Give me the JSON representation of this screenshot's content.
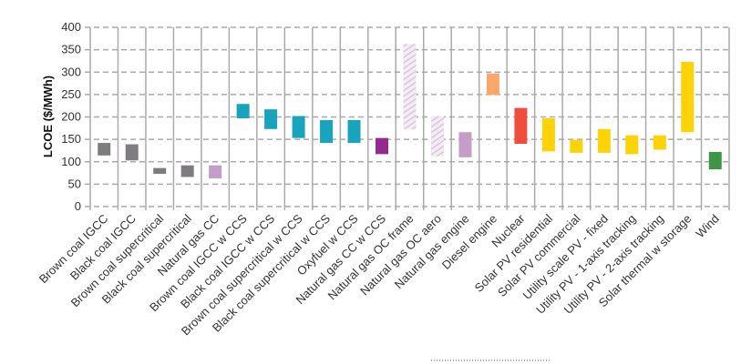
{
  "chart_data": {
    "type": "bar",
    "subtype": "floating-range",
    "ylabel": "LCOE ($/MWh)",
    "xlabel": "",
    "ylim": [
      0,
      400
    ],
    "yticks": [
      0,
      50,
      100,
      150,
      200,
      250,
      300,
      350,
      400
    ],
    "grid": true,
    "categories": [
      "Brown coal IGCC",
      "Black coal IGCC",
      "Brown coal supercritical",
      "Black coal supercritical",
      "Natural gas CC",
      "Brown coal IGCC w CCS",
      "Black coal IGCC w CCS",
      "Brown coal supercritical w CCS",
      "Black coal supercritical w CCS",
      "Oxyfuel w CCS",
      "Natural gas CC w CCS",
      "Natural gas OC frame",
      "Natural gas OC aero",
      "Natural gas engine",
      "Diesel engine",
      "Nuclear",
      "Solar PV residential",
      "Solar PV commercial",
      "Utility scale PV - fixed",
      "Utility PV - 1-axis tracking",
      "Utility PV - 2-axis tracking",
      "Solar thermal w storage",
      "Wind"
    ],
    "low": [
      114,
      103,
      73,
      66,
      63,
      197,
      173,
      153,
      142,
      142,
      117,
      173,
      112,
      110,
      249,
      140,
      123,
      120,
      120,
      117,
      127,
      166,
      83
    ],
    "high": [
      142,
      139,
      86,
      92,
      92,
      229,
      217,
      202,
      193,
      193,
      153,
      363,
      202,
      166,
      297,
      220,
      197,
      149,
      173,
      159,
      159,
      323,
      122
    ],
    "colors": [
      "#7f7c80",
      "#7f7c80",
      "#7f7c80",
      "#7f7c80",
      "#c49ec9",
      "#18a4bd",
      "#18a4bd",
      "#18a4bd",
      "#18a4bd",
      "#18a4bd",
      "#942a8e",
      "#d9c3df",
      "#d9c3df",
      "#c49ec9",
      "#f9a869",
      "#ef4e3f",
      "#fdd207",
      "#fdd207",
      "#fdd207",
      "#fdd207",
      "#fdd207",
      "#fdd207",
      "#3e9545"
    ],
    "hatched": [
      false,
      false,
      false,
      false,
      false,
      false,
      false,
      false,
      false,
      false,
      false,
      true,
      true,
      false,
      false,
      false,
      false,
      false,
      false,
      false,
      false,
      false,
      false
    ]
  }
}
